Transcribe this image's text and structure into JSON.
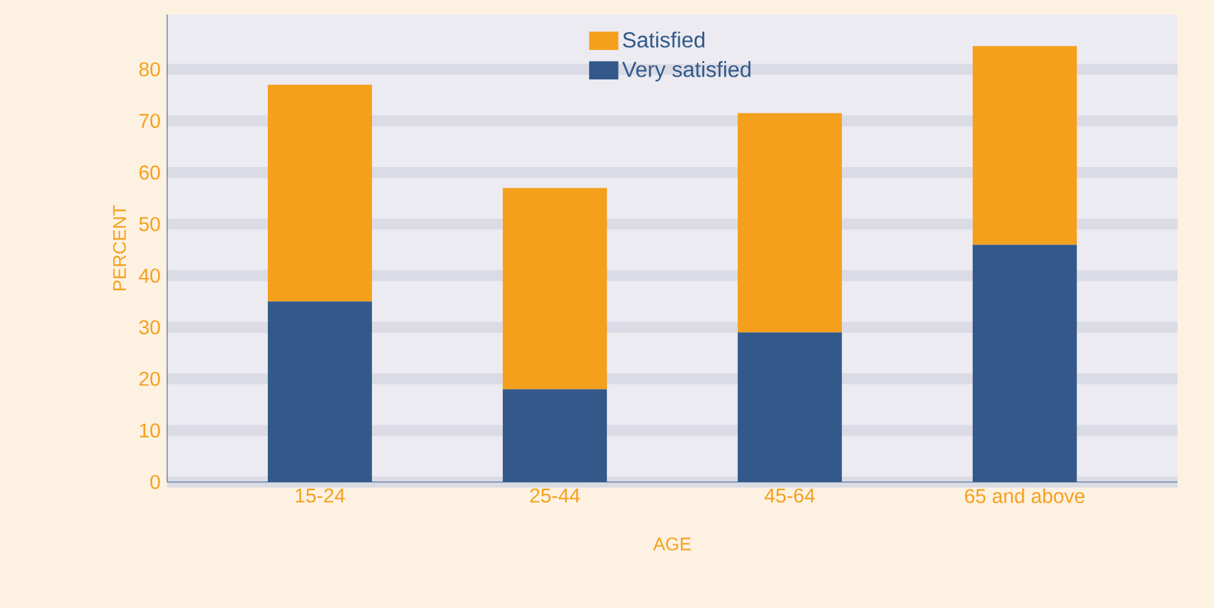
{
  "chart_data": {
    "type": "bar",
    "stacked": true,
    "xlabel": "AGE",
    "ylabel": "PERCENT",
    "categories": [
      "15-24",
      "25-44",
      "45-64",
      "65 and above"
    ],
    "series": [
      {
        "name": "Very satisfied",
        "color": "#33598a",
        "values": [
          35,
          18,
          29,
          46
        ]
      },
      {
        "name": "Satisfied",
        "color": "#f5a01c",
        "values": [
          42,
          39,
          42.5,
          38.5
        ]
      }
    ],
    "ylim": [
      0,
      90.6
    ],
    "yticks": [
      0,
      10,
      20,
      30,
      40,
      50,
      60,
      70,
      80
    ],
    "grid": "y",
    "legend": "top"
  }
}
